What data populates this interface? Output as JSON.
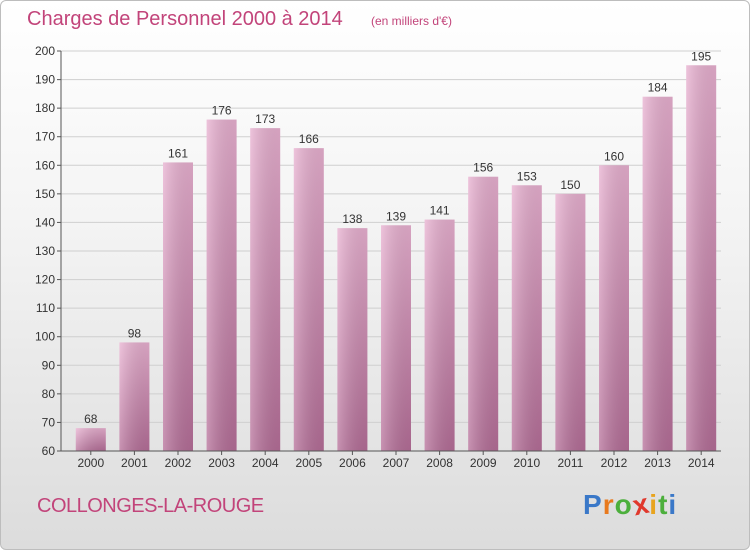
{
  "header": {
    "title": "Charges de Personnel 2000 à 2014",
    "subtitle": "(en milliers d'€)"
  },
  "footer": {
    "commune": "COLLONGES-LA-ROUGE",
    "logo": {
      "letters": [
        "P",
        "r",
        "o",
        "x",
        "i",
        "t",
        "i"
      ],
      "colors": [
        "#3a78c8",
        "#e87a1e",
        "#4caf3c",
        "#e0382c",
        "#e8a41e",
        "#4caf3c",
        "#3a78c8"
      ]
    }
  },
  "chart_data": {
    "type": "bar",
    "title": "Charges de Personnel 2000 à 2014",
    "subtitle": "(en milliers d'€)",
    "categories": [
      "2000",
      "2001",
      "2002",
      "2003",
      "2004",
      "2005",
      "2006",
      "2007",
      "2008",
      "2009",
      "2010",
      "2011",
      "2012",
      "2013",
      "2014"
    ],
    "values": [
      68,
      98,
      161,
      176,
      173,
      166,
      138,
      139,
      141,
      156,
      153,
      150,
      160,
      184,
      195
    ],
    "ylim": [
      60,
      200
    ],
    "yticks": [
      60,
      70,
      80,
      90,
      100,
      110,
      120,
      130,
      140,
      150,
      160,
      170,
      180,
      190,
      200
    ],
    "grid": true,
    "bar_color": "#d98bb6",
    "text_color": "#c2447a"
  }
}
